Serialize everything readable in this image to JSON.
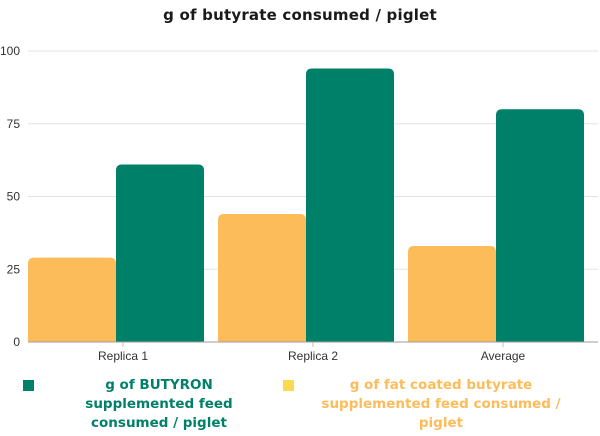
{
  "chart_data": {
    "type": "bar",
    "title": "g of butyrate consumed / piglet",
    "categories": [
      "Replica 1",
      "Replica 2",
      "Average"
    ],
    "series": [
      {
        "name": "g of fat coated butyrate supplemented feed consumed / piglet",
        "color": "#FDBC5A",
        "values": [
          29,
          44,
          33
        ]
      },
      {
        "name": "g of BUTYRON supplemented feed consumed / piglet",
        "color": "#008069",
        "values": [
          61,
          94,
          80
        ]
      }
    ],
    "yticks": [
      0,
      25,
      50,
      75,
      100
    ],
    "ylim": [
      0,
      100
    ],
    "grid": true,
    "legend_position": "bottom"
  },
  "legend": {
    "green_label": "g of BUTYRON supplemented feed consumed / piglet",
    "green_color": "#008069",
    "yellow_label": "g of fat coated butyrate supplemented feed consumed / piglet",
    "yellow_color": "#FDBC5A",
    "yellow_marker_color": "#FDDA4D"
  }
}
